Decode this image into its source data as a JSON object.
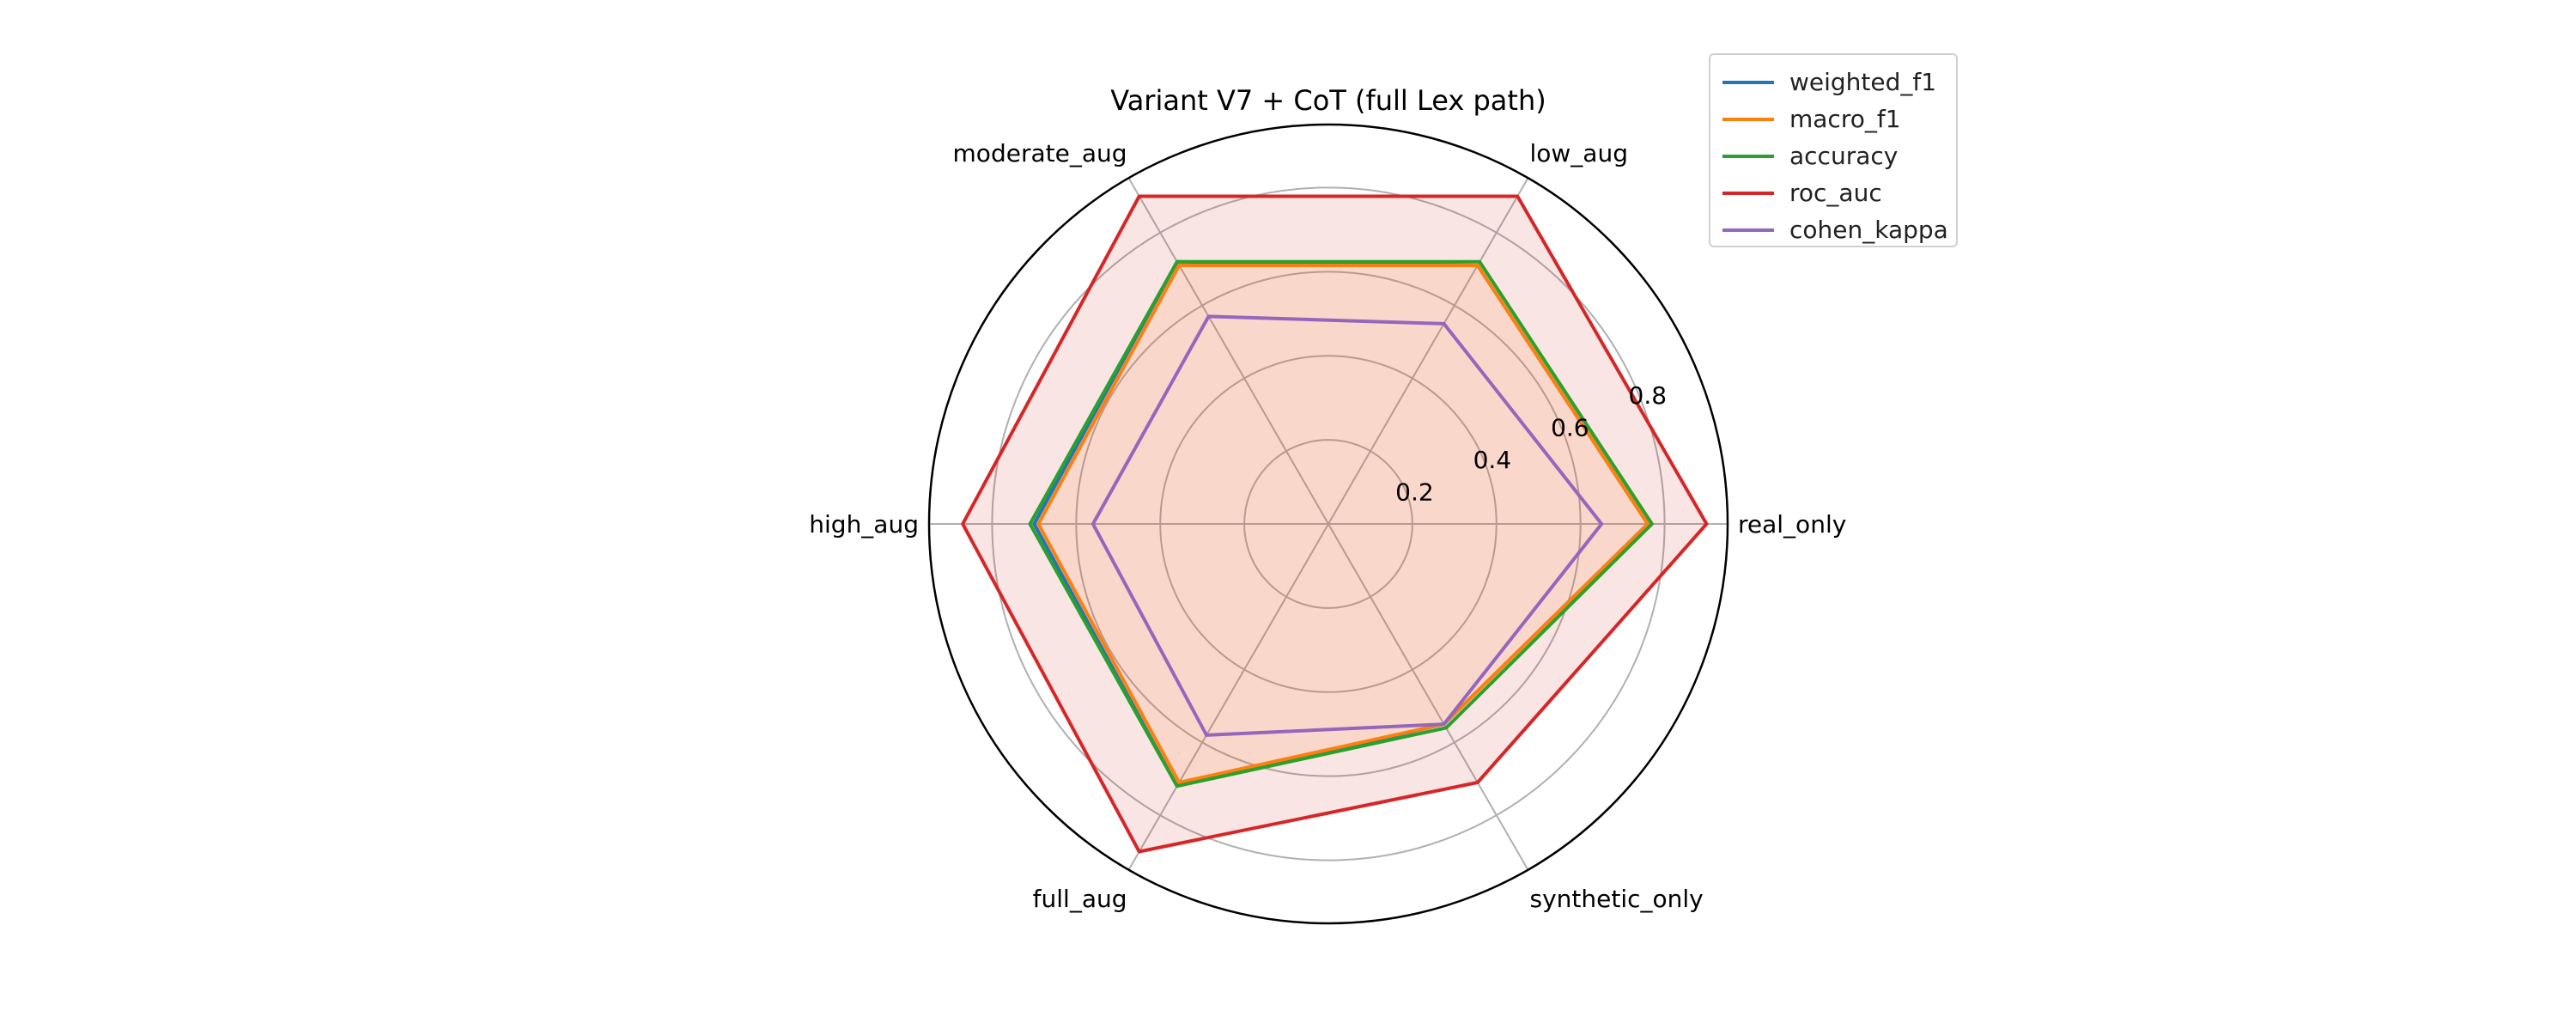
{
  "chart_data": {
    "type": "radar",
    "title": "Variant V7 + CoT (full Lex path)",
    "categories": [
      "real_only",
      "low_aug",
      "moderate_aug",
      "high_aug",
      "full_aug",
      "synthetic_only"
    ],
    "radial_ticks": [
      "0.2",
      "0.4",
      "0.6",
      "0.8"
    ],
    "rlim": [
      0,
      0.95
    ],
    "grid": true,
    "legend_position": "outside top-right",
    "series": [
      {
        "name": "weighted_f1",
        "color": "#1f77b4",
        "values": [
          0.76,
          0.71,
          0.72,
          0.7,
          0.72,
          0.55
        ],
        "fill": false
      },
      {
        "name": "macro_f1",
        "color": "#ff7f0e",
        "values": [
          0.76,
          0.71,
          0.71,
          0.69,
          0.71,
          0.55
        ],
        "fill": true
      },
      {
        "name": "accuracy",
        "color": "#2ca02c",
        "values": [
          0.77,
          0.72,
          0.72,
          0.71,
          0.72,
          0.56
        ],
        "fill": false
      },
      {
        "name": "roc_auc",
        "color": "#d62728",
        "values": [
          0.9,
          0.9,
          0.9,
          0.87,
          0.9,
          0.71
        ],
        "fill": true
      },
      {
        "name": "cohen_kappa",
        "color": "#9467bd",
        "values": [
          0.65,
          0.55,
          0.57,
          0.56,
          0.58,
          0.55
        ],
        "fill": false
      }
    ]
  }
}
